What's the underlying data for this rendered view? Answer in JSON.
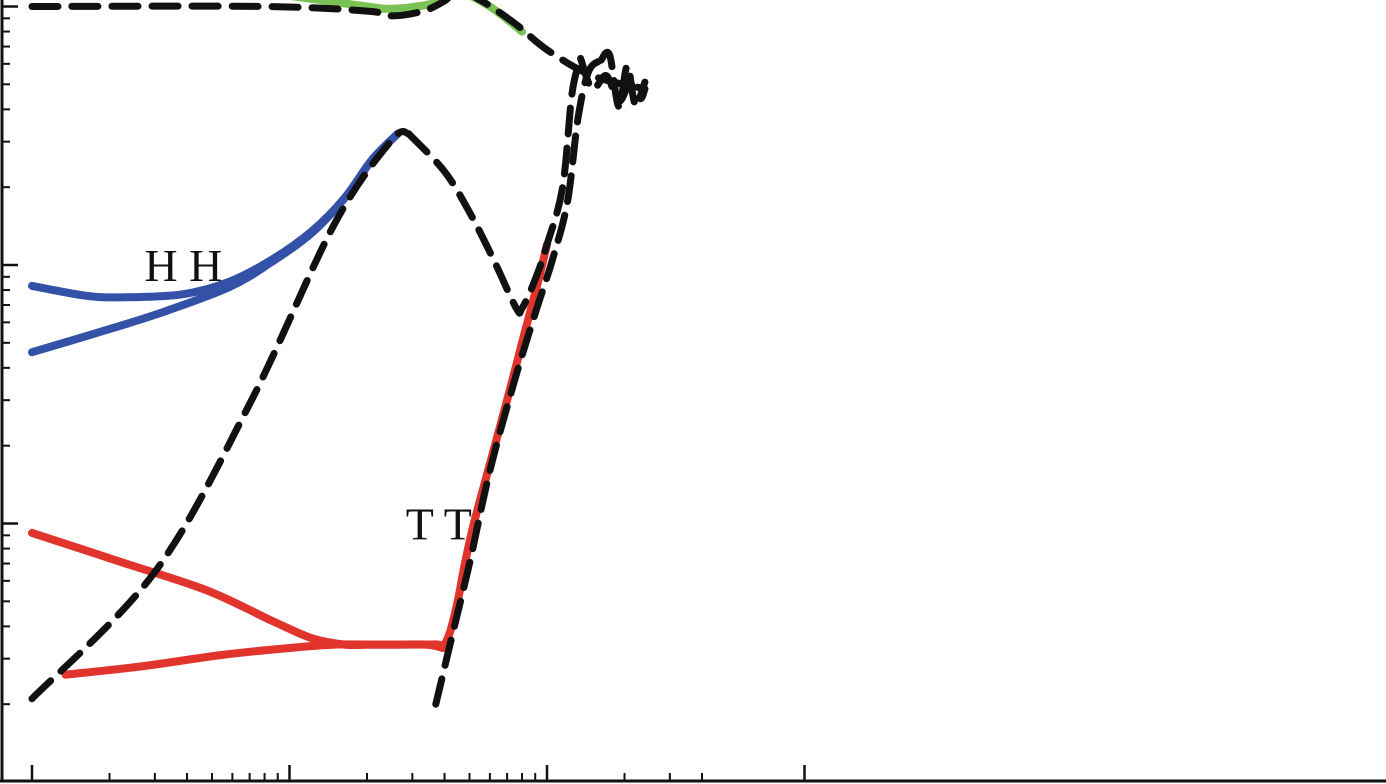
{
  "chart_data": {
    "type": "line",
    "title": "",
    "xlabel": "",
    "ylabel": "",
    "x_scale": "log",
    "y_scale": "log",
    "grid": false,
    "colors": {
      "HH": "#3451a8",
      "TT": "#e0342d",
      "green": "#7ac254",
      "reference": "#111111"
    },
    "annotations": [
      {
        "id": "hh",
        "text": "H H"
      },
      {
        "id": "tt",
        "text": "T T"
      }
    ],
    "series": [
      {
        "id": "hh-upper",
        "color": "#3451a8",
        "style": "solid",
        "x": [
          0.01,
          0.0163,
          0.0227,
          0.0384,
          0.0582,
          0.0856,
          0.122,
          0.164,
          0.209,
          0.263
        ],
        "y": [
          0.83,
          0.76,
          0.75,
          0.77,
          0.86,
          1.05,
          1.35,
          1.82,
          2.55,
          3.22
        ]
      },
      {
        "id": "hh-lower",
        "color": "#3451a8",
        "style": "solid",
        "x": [
          0.01,
          0.0172,
          0.0312,
          0.0582,
          0.0856,
          0.122,
          0.164,
          0.209,
          0.263
        ],
        "y": [
          0.46,
          0.54,
          0.65,
          0.82,
          1.03,
          1.33,
          1.82,
          2.55,
          3.22
        ]
      },
      {
        "id": "tt-upper",
        "color": "#e0342d",
        "style": "solid",
        "x": [
          0.01,
          0.0221,
          0.048,
          0.0856,
          0.122,
          0.164,
          0.209,
          0.263,
          0.343,
          0.395
        ],
        "y": [
          0.092,
          0.071,
          0.055,
          0.042,
          0.036,
          0.034,
          0.034,
          0.034,
          0.034,
          0.033
        ]
      },
      {
        "id": "tt-lower",
        "color": "#e0342d",
        "style": "solid",
        "x": [
          0.0135,
          0.0266,
          0.0545,
          0.1,
          0.15,
          0.22,
          0.3,
          0.343,
          0.38,
          0.395
        ],
        "y": [
          0.026,
          0.028,
          0.031,
          0.033,
          0.034,
          0.034,
          0.034,
          0.034,
          0.034,
          0.033
        ]
      },
      {
        "id": "tt-rise",
        "color": "#e0342d",
        "style": "solid",
        "x": [
          0.395,
          0.42,
          0.45,
          0.48,
          0.52,
          0.6,
          0.7,
          0.8,
          0.92,
          1.0
        ],
        "y": [
          0.033,
          0.038,
          0.05,
          0.07,
          0.1,
          0.17,
          0.3,
          0.5,
          0.85,
          1.2
        ]
      },
      {
        "id": "green",
        "color": "#7ac254",
        "style": "solid",
        "x": [
          0.1,
          0.2,
          0.25,
          0.35,
          0.4,
          0.45,
          0.6,
          0.8
        ],
        "y": [
          11.0,
          10.0,
          9.8,
          10.2,
          11.0,
          11.5,
          10.0,
          8.0
        ]
      },
      {
        "id": "ref-top",
        "color": "#111111",
        "style": "dashed",
        "x": [
          0.01,
          0.08,
          0.2,
          0.25,
          0.33,
          0.4,
          0.45,
          0.55,
          0.75,
          1.0,
          1.5,
          2.4
        ],
        "y": [
          10.0,
          10.0,
          9.6,
          9.2,
          9.6,
          10.5,
          11.5,
          10.6,
          8.6,
          6.8,
          5.4,
          4.8
        ]
      },
      {
        "id": "ref-power",
        "color": "#111111",
        "style": "dashed",
        "x": [
          0.01,
          0.03,
          0.07,
          0.15,
          0.25,
          0.29
        ],
        "y": [
          0.021,
          0.065,
          0.29,
          1.45,
          3.05,
          3.22
        ]
      },
      {
        "id": "ref-hh-resonance",
        "color": "#111111",
        "style": "dashed",
        "x": [
          0.29,
          0.4,
          0.5,
          0.62,
          0.76,
          0.8,
          0.9,
          1.0,
          1.15,
          1.25,
          1.35
        ],
        "y": [
          3.22,
          2.3,
          1.6,
          1.05,
          0.68,
          0.68,
          0.88,
          1.2,
          2.0,
          4.6,
          6.3
        ]
      },
      {
        "id": "ref-tt-rise",
        "color": "#111111",
        "style": "dashed",
        "x": [
          0.37,
          0.42,
          0.5,
          0.6,
          0.75,
          0.9,
          1.05,
          1.2,
          1.32,
          1.45,
          1.62
        ],
        "y": [
          0.02,
          0.034,
          0.07,
          0.16,
          0.36,
          0.65,
          1.05,
          1.75,
          3.7,
          5.6,
          6.2
        ]
      },
      {
        "id": "ref-tail-a",
        "color": "#111111",
        "style": "dashed",
        "x": [
          1.35,
          1.5,
          1.7,
          1.9,
          2.1,
          2.3,
          2.4
        ],
        "y": [
          6.3,
          4.8,
          5.4,
          4.3,
          5.0,
          4.4,
          4.8
        ]
      },
      {
        "id": "ref-tail-b",
        "color": "#111111",
        "style": "dashed",
        "x": [
          1.62,
          1.75,
          1.9,
          2.05,
          2.2,
          2.4
        ],
        "y": [
          6.2,
          6.5,
          4.1,
          5.9,
          4.2,
          5.1
        ]
      }
    ]
  }
}
